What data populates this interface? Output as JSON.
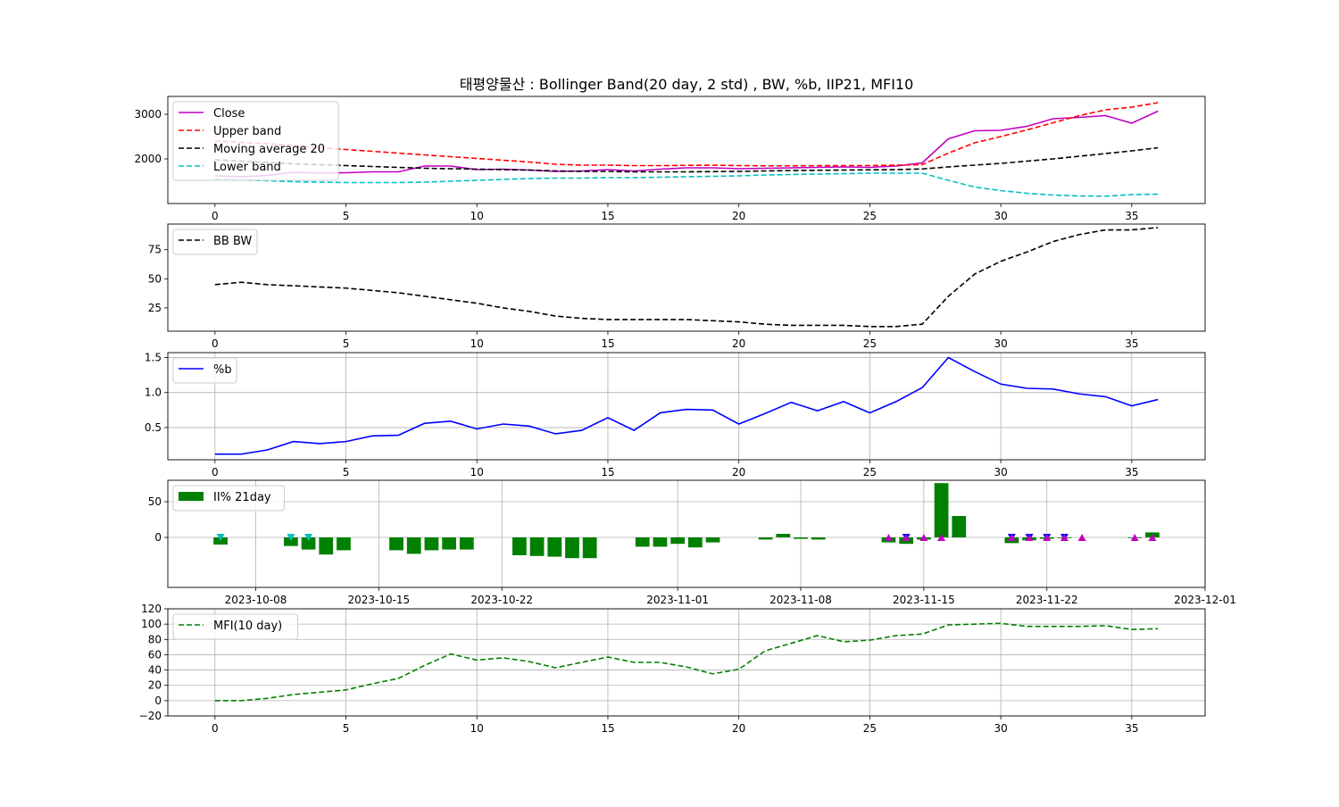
{
  "title": "태평양물산 : Bollinger Band(20 day, 2 std) , BW, %b, IIP21, MFI10",
  "chart_data": [
    {
      "type": "line",
      "x": [
        0,
        1,
        2,
        3,
        4,
        5,
        6,
        7,
        8,
        9,
        10,
        11,
        12,
        13,
        14,
        15,
        16,
        17,
        18,
        19,
        20,
        21,
        22,
        23,
        24,
        25,
        26,
        27,
        28,
        29,
        30,
        31,
        32,
        33,
        34,
        35,
        36
      ],
      "xticks": [
        0,
        5,
        10,
        15,
        20,
        25,
        30,
        35
      ],
      "xlim": [
        -1.8,
        37.8
      ],
      "ylim": [
        1000,
        3400
      ],
      "yticks": [
        2000,
        3000
      ],
      "grid": false,
      "legend_position": "upper-left",
      "series": [
        {
          "name": "Close",
          "color": "#bf00bf",
          "dash": "solid",
          "values": [
            1620,
            1600,
            1630,
            1700,
            1680,
            1690,
            1710,
            1710,
            1840,
            1840,
            1760,
            1770,
            1750,
            1720,
            1730,
            1760,
            1730,
            1770,
            1800,
            1800,
            1780,
            1790,
            1800,
            1810,
            1820,
            1810,
            1840,
            1910,
            2450,
            2630,
            2640,
            2730,
            2900,
            2930,
            2970,
            2800,
            3070
          ]
        },
        {
          "name": "Upper band",
          "color": "#ff0000",
          "dash": "dashed",
          "values": [
            2400,
            2370,
            2340,
            2300,
            2250,
            2210,
            2170,
            2130,
            2090,
            2050,
            2010,
            1970,
            1930,
            1880,
            1860,
            1860,
            1850,
            1850,
            1855,
            1860,
            1850,
            1845,
            1845,
            1848,
            1850,
            1850,
            1860,
            1870,
            2130,
            2360,
            2500,
            2650,
            2810,
            2970,
            3100,
            3160,
            3260
          ]
        },
        {
          "name": "Moving average 20",
          "color": "#000000",
          "dash": "dashed",
          "values": [
            1980,
            1950,
            1920,
            1890,
            1870,
            1850,
            1830,
            1810,
            1790,
            1780,
            1770,
            1760,
            1750,
            1730,
            1720,
            1720,
            1710,
            1710,
            1710,
            1715,
            1720,
            1730,
            1740,
            1745,
            1750,
            1755,
            1760,
            1775,
            1820,
            1860,
            1900,
            1950,
            2000,
            2060,
            2120,
            2180,
            2250
          ]
        },
        {
          "name": "Lower band",
          "color": "#00bfbf",
          "dash": "dashed",
          "values": [
            1550,
            1530,
            1510,
            1490,
            1480,
            1470,
            1470,
            1470,
            1480,
            1500,
            1520,
            1540,
            1560,
            1570,
            1570,
            1580,
            1580,
            1590,
            1600,
            1610,
            1620,
            1640,
            1650,
            1660,
            1670,
            1680,
            1680,
            1680,
            1520,
            1370,
            1290,
            1230,
            1190,
            1170,
            1165,
            1200,
            1210
          ]
        }
      ]
    },
    {
      "type": "line",
      "x": [
        0,
        1,
        2,
        3,
        4,
        5,
        6,
        7,
        8,
        9,
        10,
        11,
        12,
        13,
        14,
        15,
        16,
        17,
        18,
        19,
        20,
        21,
        22,
        23,
        24,
        25,
        26,
        27,
        28,
        29,
        30,
        31,
        32,
        33,
        34,
        35,
        36
      ],
      "xticks": [
        0,
        5,
        10,
        15,
        20,
        25,
        30,
        35
      ],
      "xlim": [
        -1.8,
        37.8
      ],
      "ylim": [
        5,
        97
      ],
      "yticks": [
        25,
        50,
        75
      ],
      "grid": false,
      "legend_position": "upper-left",
      "series": [
        {
          "name": "BB BW",
          "color": "#000000",
          "dash": "dashed",
          "values": [
            45,
            47,
            45,
            44,
            43,
            42,
            40,
            38,
            35,
            32,
            29,
            25,
            22,
            18,
            16,
            15,
            15,
            15,
            15,
            14,
            13,
            11,
            10,
            10,
            10,
            9,
            9,
            11,
            35,
            54,
            65,
            73,
            82,
            88,
            92,
            92,
            94
          ]
        }
      ]
    },
    {
      "type": "line",
      "x": [
        0,
        1,
        2,
        3,
        4,
        5,
        6,
        7,
        8,
        9,
        10,
        11,
        12,
        13,
        14,
        15,
        16,
        17,
        18,
        19,
        20,
        21,
        22,
        23,
        24,
        25,
        26,
        27,
        28,
        29,
        30,
        31,
        32,
        33,
        34,
        35,
        36
      ],
      "xticks": [
        0,
        5,
        10,
        15,
        20,
        25,
        30,
        35
      ],
      "xlim": [
        -1.8,
        37.8
      ],
      "ylim": [
        0.04,
        1.57
      ],
      "yticks": [
        0.5,
        1.0,
        1.5
      ],
      "ytick_labels": [
        "0.5",
        "1.0",
        "1.5"
      ],
      "grid": true,
      "legend_position": "upper-left",
      "series": [
        {
          "name": "%b",
          "color": "#0000ff",
          "dash": "solid",
          "values": [
            0.12,
            0.12,
            0.18,
            0.3,
            0.27,
            0.3,
            0.38,
            0.39,
            0.56,
            0.59,
            0.48,
            0.55,
            0.52,
            0.41,
            0.46,
            0.64,
            0.46,
            0.71,
            0.76,
            0.75,
            0.55,
            0.7,
            0.86,
            0.74,
            0.87,
            0.71,
            0.87,
            1.07,
            1.5,
            1.3,
            1.12,
            1.06,
            1.05,
            0.98,
            0.94,
            0.81,
            0.9
          ]
        }
      ]
    },
    {
      "type": "bar",
      "x_is_date": true,
      "xlim": [
        "2023-10-03",
        "2023-12-01"
      ],
      "xticks": [
        "2023-10-08",
        "2023-10-15",
        "2023-10-22",
        "2023-11-01",
        "2023-11-08",
        "2023-11-15",
        "2023-11-22",
        "2023-12-01"
      ],
      "ylim": [
        -70,
        80
      ],
      "yticks": [
        0,
        50
      ],
      "grid": true,
      "legend_position": "upper-left",
      "series": [
        {
          "name": "II% 21day",
          "color": "#008000",
          "dates": [
            "2023-10-06",
            "2023-10-10",
            "2023-10-11",
            "2023-10-12",
            "2023-10-13",
            "2023-10-16",
            "2023-10-17",
            "2023-10-18",
            "2023-10-19",
            "2023-10-20",
            "2023-10-23",
            "2023-10-24",
            "2023-10-25",
            "2023-10-26",
            "2023-10-27",
            "2023-10-30",
            "2023-10-31",
            "2023-11-01",
            "2023-11-02",
            "2023-11-03",
            "2023-11-06",
            "2023-11-07",
            "2023-11-08",
            "2023-11-09",
            "2023-11-10",
            "2023-11-13",
            "2023-11-14",
            "2023-11-15",
            "2023-11-16",
            "2023-11-17",
            "2023-11-20",
            "2023-11-21",
            "2023-11-22",
            "2023-11-23",
            "2023-11-24",
            "2023-11-27",
            "2023-11-28"
          ],
          "values": [
            -10,
            -12,
            -17,
            -24,
            -18,
            -18,
            -23,
            -18,
            -17,
            -17,
            -25,
            -26,
            -27,
            -29,
            -29,
            -13,
            -13,
            -9,
            -14,
            -7,
            -3,
            5,
            -2,
            -3,
            0,
            -7,
            -9,
            -3,
            76,
            30,
            -8,
            -4,
            -2,
            -1,
            0,
            -1,
            7
          ]
        }
      ],
      "markers": [
        {
          "date": "2023-10-06",
          "kind": "down",
          "color": "#00bfbf"
        },
        {
          "date": "2023-10-10",
          "kind": "down",
          "color": "#00bfbf"
        },
        {
          "date": "2023-10-11",
          "kind": "down",
          "color": "#00bfbf"
        },
        {
          "date": "2023-11-13",
          "kind": "up",
          "color": "#bf00bf"
        },
        {
          "date": "2023-11-14",
          "kind": "down",
          "color": "#0000ff"
        },
        {
          "date": "2023-11-14",
          "kind": "up",
          "color": "#bf00bf"
        },
        {
          "date": "2023-11-15",
          "kind": "up",
          "color": "#bf00bf"
        },
        {
          "date": "2023-11-16",
          "kind": "up",
          "color": "#bf00bf"
        },
        {
          "date": "2023-11-20",
          "kind": "down",
          "color": "#0000ff"
        },
        {
          "date": "2023-11-20",
          "kind": "up",
          "color": "#bf00bf"
        },
        {
          "date": "2023-11-21",
          "kind": "down",
          "color": "#0000ff"
        },
        {
          "date": "2023-11-21",
          "kind": "up",
          "color": "#bf00bf"
        },
        {
          "date": "2023-11-22",
          "kind": "down",
          "color": "#0000ff"
        },
        {
          "date": "2023-11-22",
          "kind": "up",
          "color": "#bf00bf"
        },
        {
          "date": "2023-11-23",
          "kind": "down",
          "color": "#0000ff"
        },
        {
          "date": "2023-11-23",
          "kind": "up",
          "color": "#bf00bf"
        },
        {
          "date": "2023-11-24",
          "kind": "up",
          "color": "#bf00bf"
        },
        {
          "date": "2023-11-27",
          "kind": "up",
          "color": "#bf00bf"
        },
        {
          "date": "2023-11-28",
          "kind": "up",
          "color": "#bf00bf"
        }
      ]
    },
    {
      "type": "line",
      "x": [
        0,
        1,
        2,
        3,
        4,
        5,
        6,
        7,
        8,
        9,
        10,
        11,
        12,
        13,
        14,
        15,
        16,
        17,
        18,
        19,
        20,
        21,
        22,
        23,
        24,
        25,
        26,
        27,
        28,
        29,
        30,
        31,
        32,
        33,
        34,
        35,
        36
      ],
      "xticks": [
        0,
        5,
        10,
        15,
        20,
        25,
        30,
        35
      ],
      "xlim": [
        -1.8,
        37.8
      ],
      "ylim": [
        -20,
        120
      ],
      "yticks": [
        -20,
        0,
        20,
        40,
        60,
        80,
        100,
        120
      ],
      "ytick_labels": [
        "−20",
        "0",
        "20",
        "40",
        "60",
        "80",
        "100",
        "120"
      ],
      "grid": true,
      "legend_position": "upper-left",
      "series": [
        {
          "name": "MFI(10 day)",
          "color": "#008000",
          "dash": "dashed",
          "values": [
            0,
            0,
            3,
            8,
            11,
            14,
            22,
            29,
            46,
            61,
            53,
            56,
            51,
            43,
            50,
            57,
            50,
            50,
            44,
            35,
            41,
            65,
            75,
            85,
            77,
            79,
            85,
            87,
            99,
            100,
            101,
            97,
            97,
            97,
            98,
            93,
            94
          ]
        }
      ]
    }
  ]
}
